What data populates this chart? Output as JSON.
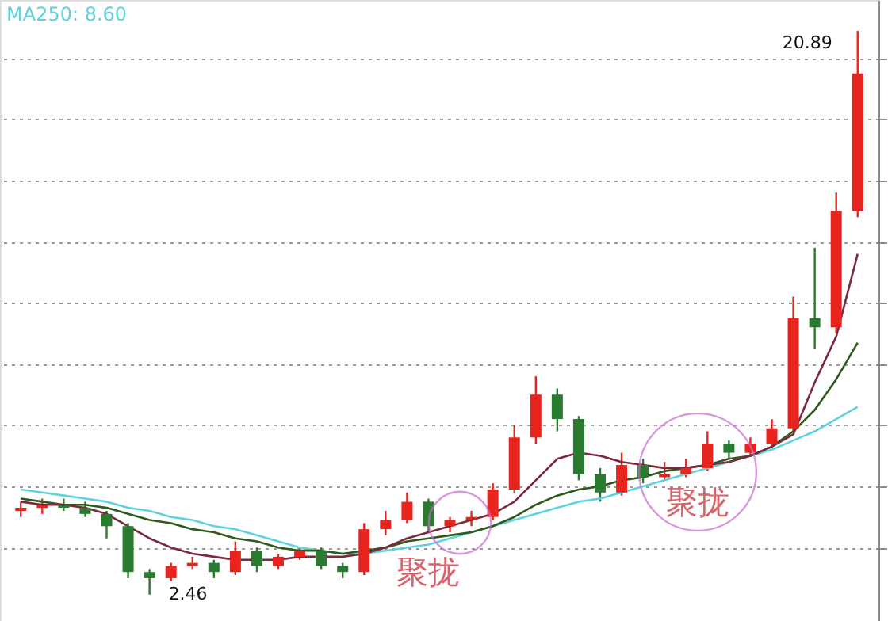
{
  "chart_data": {
    "type": "candlestick",
    "title": "MA250: 8.60",
    "categories": [
      null,
      null,
      null,
      null,
      null,
      null,
      null,
      null,
      null,
      null,
      null,
      null,
      null,
      null,
      null,
      null,
      null,
      null,
      null,
      null,
      null,
      null,
      null,
      null,
      null,
      null,
      null,
      null,
      null,
      null,
      null,
      null,
      null,
      null,
      null,
      null,
      null,
      null,
      null,
      null
    ],
    "ohlc": [
      [
        5.2,
        5.5,
        5.0,
        5.3
      ],
      [
        5.3,
        5.6,
        5.1,
        5.4
      ],
      [
        5.4,
        5.6,
        5.2,
        5.3
      ],
      [
        5.3,
        5.5,
        5.0,
        5.1
      ],
      [
        5.1,
        5.2,
        4.3,
        4.7
      ],
      [
        4.7,
        4.8,
        3.0,
        3.2
      ],
      [
        3.2,
        3.3,
        2.46,
        3.0
      ],
      [
        3.0,
        3.5,
        2.9,
        3.4
      ],
      [
        3.4,
        3.7,
        3.3,
        3.5
      ],
      [
        3.5,
        3.6,
        3.0,
        3.2
      ],
      [
        3.2,
        4.2,
        3.1,
        3.9
      ],
      [
        3.9,
        4.0,
        3.2,
        3.4
      ],
      [
        3.4,
        3.8,
        3.3,
        3.7
      ],
      [
        3.7,
        4.0,
        3.6,
        3.9
      ],
      [
        3.9,
        4.0,
        3.3,
        3.4
      ],
      [
        3.4,
        3.5,
        3.0,
        3.2
      ],
      [
        3.2,
        4.8,
        3.1,
        4.6
      ],
      [
        4.6,
        5.2,
        4.4,
        4.9
      ],
      [
        4.9,
        5.8,
        4.8,
        5.5
      ],
      [
        5.5,
        5.6,
        4.5,
        4.7
      ],
      [
        4.7,
        5.0,
        4.5,
        4.9
      ],
      [
        4.9,
        5.2,
        4.7,
        5.0
      ],
      [
        5.0,
        6.1,
        4.9,
        5.9
      ],
      [
        5.9,
        8.0,
        5.8,
        7.6
      ],
      [
        7.6,
        9.6,
        7.4,
        9.0
      ],
      [
        9.0,
        9.2,
        7.8,
        8.2
      ],
      [
        8.2,
        8.3,
        6.2,
        6.4
      ],
      [
        6.4,
        6.6,
        5.5,
        5.8
      ],
      [
        5.8,
        7.1,
        5.7,
        6.7
      ],
      [
        6.7,
        6.9,
        6.1,
        6.3
      ],
      [
        6.3,
        6.8,
        6.2,
        6.4
      ],
      [
        6.4,
        6.9,
        6.3,
        6.6
      ],
      [
        6.6,
        7.8,
        6.5,
        7.4
      ],
      [
        7.4,
        7.5,
        6.9,
        7.1
      ],
      [
        7.1,
        7.6,
        7.0,
        7.4
      ],
      [
        7.4,
        8.2,
        7.3,
        7.9
      ],
      [
        7.9,
        12.2,
        7.8,
        11.5
      ],
      [
        11.5,
        13.8,
        10.5,
        11.2
      ],
      [
        11.2,
        15.6,
        11.0,
        15.0
      ],
      [
        15.0,
        20.89,
        14.8,
        19.5
      ]
    ],
    "colors": [
      "#e8241e",
      "#e8241e",
      "#2a7a30",
      "#2a7a30",
      "#2a7a30",
      "#2a7a30",
      "#2a7a30",
      "#e8241e",
      "#e8241e",
      "#2a7a30",
      "#e8241e",
      "#2a7a30",
      "#e8241e",
      "#e8241e",
      "#2a7a30",
      "#2a7a30",
      "#e8241e",
      "#e8241e",
      "#e8241e",
      "#2a7a30",
      "#e8241e",
      "#e8241e",
      "#e8241e",
      "#e8241e",
      "#e8241e",
      "#2a7a30",
      "#2a7a30",
      "#2a7a30",
      "#e8241e",
      "#2a7a30",
      "#e8241e",
      "#e8241e",
      "#e8241e",
      "#2a7a30",
      "#e8241e",
      "#e8241e",
      "#e8241e",
      "#2a7a30",
      "#e8241e",
      "#e8241e"
    ],
    "series": [
      {
        "type": "line",
        "color": "#5fd3dc",
        "values": [
          5.9,
          5.8,
          5.7,
          5.6,
          5.5,
          5.3,
          5.2,
          5.0,
          4.9,
          4.7,
          4.6,
          4.4,
          4.2,
          4.0,
          3.9,
          3.8,
          3.8,
          3.9,
          4.0,
          4.1,
          4.3,
          4.5,
          4.7,
          4.9,
          5.1,
          5.3,
          5.5,
          5.6,
          5.8,
          6.0,
          6.2,
          6.4,
          6.6,
          6.8,
          7.0,
          7.2,
          7.5,
          7.8,
          8.2,
          8.6
        ]
      },
      {
        "type": "line",
        "color": "#2e5a1e",
        "values": [
          5.6,
          5.5,
          5.4,
          5.4,
          5.3,
          5.1,
          4.9,
          4.8,
          4.6,
          4.5,
          4.3,
          4.2,
          4.0,
          3.9,
          3.9,
          3.8,
          3.9,
          4.0,
          4.2,
          4.3,
          4.4,
          4.5,
          4.7,
          5.0,
          5.4,
          5.7,
          5.9,
          6.0,
          6.2,
          6.3,
          6.5,
          6.6,
          6.7,
          6.9,
          7.0,
          7.3,
          7.8,
          8.5,
          9.5,
          10.7
        ]
      },
      {
        "type": "line",
        "color": "#7a2a3a",
        "values": [
          5.5,
          5.4,
          5.4,
          5.3,
          5.1,
          4.7,
          4.3,
          4.0,
          3.8,
          3.7,
          3.6,
          3.6,
          3.6,
          3.7,
          3.7,
          3.7,
          3.8,
          4.0,
          4.3,
          4.5,
          4.7,
          4.9,
          5.1,
          5.5,
          6.2,
          6.9,
          7.1,
          7.0,
          6.8,
          6.7,
          6.6,
          6.6,
          6.7,
          6.8,
          7.0,
          7.3,
          7.7,
          9.4,
          10.9,
          13.6
        ]
      }
    ],
    "ylim": [
      1.6,
      21.9
    ],
    "yticks": [
      {
        "value": 4,
        "label": null
      },
      {
        "value": 6,
        "label": null
      },
      {
        "value": 8,
        "label": null
      },
      {
        "value": 10,
        "label": null
      },
      {
        "value": 12,
        "label": null
      },
      {
        "value": 14,
        "label": null
      },
      {
        "value": 16,
        "label": null
      },
      {
        "value": 18,
        "label": null
      },
      {
        "value": 20,
        "label": null
      }
    ],
    "grid": "y",
    "tick_labels": false,
    "annotations": [
      "20.89",
      "2.46",
      "聚拢",
      "聚拢"
    ]
  }
}
